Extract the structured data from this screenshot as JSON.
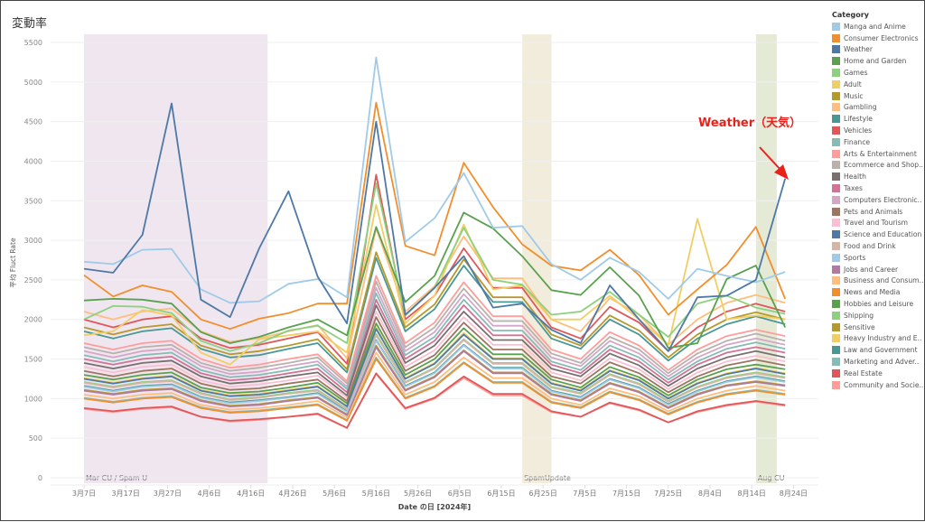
{
  "title": "変動率",
  "annotation": {
    "text": "Weather（天気）",
    "color": "#e8221b"
  },
  "chart_data": {
    "type": "line",
    "title": "変動率",
    "xlabel": "Date の日 [2024年]",
    "ylabel": "平均 Fluct Rate",
    "ylim": [
      0,
      5500
    ],
    "yticks": [
      "0",
      "500",
      "1000",
      "1500",
      "2000",
      "2500",
      "3000",
      "3500",
      "4000",
      "4500",
      "5000",
      "5500"
    ],
    "xtick_labels": [
      "3月7日",
      "3月17日",
      "3月27日",
      "4月6日",
      "4月16日",
      "4月26日",
      "5月6日",
      "5月16日",
      "5月26日",
      "6月5日",
      "6月15日",
      "6月25日",
      "7月5日",
      "7月15日",
      "7月25日",
      "8月4日",
      "8月14日",
      "8月24日"
    ],
    "grid": true,
    "legend_title": "Category",
    "legend_position": "right",
    "bands": [
      {
        "label": "Mar CU / Spam U",
        "start": "2024-03-07",
        "end": "2024-04-20",
        "color": "#efe6f0"
      },
      {
        "label": "SpamUpdate",
        "start": "2024-06-20",
        "end": "2024-06-27",
        "color": "#f2ecdc"
      },
      {
        "label": "Aug CU",
        "start": "2024-08-15",
        "end": "2024-08-20",
        "color": "#e5ead6"
      }
    ],
    "x": [
      "2024-03-07",
      "2024-03-14",
      "2024-03-21",
      "2024-03-28",
      "2024-04-04",
      "2024-04-11",
      "2024-04-18",
      "2024-04-25",
      "2024-05-02",
      "2024-05-09",
      "2024-05-16",
      "2024-05-23",
      "2024-05-30",
      "2024-06-06",
      "2024-06-13",
      "2024-06-20",
      "2024-06-27",
      "2024-07-04",
      "2024-07-11",
      "2024-07-18",
      "2024-07-25",
      "2024-08-01",
      "2024-08-08",
      "2024-08-15",
      "2024-08-22"
    ],
    "series": [
      {
        "name": "Manga and Anime",
        "legend": "Manga and Anime",
        "color": "#a0cbe8",
        "values": [
          2730,
          2700,
          2880,
          2890,
          2380,
          2210,
          2230,
          2450,
          2510,
          2280,
          5310,
          2980,
          3280,
          3850,
          3160,
          3180,
          2700,
          2500,
          2780,
          2600,
          2260,
          2640,
          2550,
          2470,
          2600
        ]
      },
      {
        "name": "Consumer Electronics",
        "legend": "Consumer Electronics",
        "color": "#f28e2b",
        "values": [
          2560,
          2290,
          2430,
          2350,
          2000,
          1880,
          2010,
          2080,
          2200,
          2200,
          4740,
          2930,
          2810,
          3980,
          3420,
          2950,
          2680,
          2620,
          2880,
          2560,
          2060,
          2380,
          2690,
          3170,
          2260
        ]
      },
      {
        "name": "Weather",
        "legend": "Weather",
        "color": "#4e79a7",
        "values": [
          2640,
          2590,
          3070,
          4730,
          2250,
          2030,
          2900,
          3620,
          2540,
          1950,
          4500,
          2060,
          2400,
          2800,
          2150,
          2200,
          1870,
          1700,
          2430,
          2000,
          1600,
          2280,
          2300,
          2500,
          3780
        ]
      },
      {
        "name": "Home and Garden",
        "legend": "Home and Garden",
        "color": "#59a14f",
        "values": [
          2240,
          2260,
          2250,
          2200,
          1840,
          1700,
          1780,
          1900,
          2000,
          1800,
          3170,
          2220,
          2550,
          3350,
          3150,
          2800,
          2370,
          2310,
          2660,
          2300,
          1640,
          1700,
          2510,
          2680,
          1900
        ]
      },
      {
        "name": "Games",
        "legend": "Games",
        "color": "#8cd17d",
        "values": [
          2000,
          2170,
          2160,
          2080,
          1730,
          1600,
          1700,
          1860,
          1920,
          1700,
          3720,
          2050,
          2400,
          3160,
          2500,
          2440,
          2060,
          2100,
          2350,
          2060,
          1780,
          2200,
          2300,
          2150,
          2070
        ]
      },
      {
        "name": "Adult",
        "legend": "Adult",
        "color": "#f1ce63",
        "values": [
          1800,
          1850,
          2120,
          2050,
          1580,
          1430,
          1750,
          1800,
          1850,
          1580,
          3450,
          1950,
          2300,
          3200,
          2380,
          2430,
          2000,
          2000,
          2300,
          2000,
          1680,
          3270,
          2000,
          2050,
          2000
        ]
      },
      {
        "name": "Music",
        "legend": "Music",
        "color": "#b6992d",
        "values": [
          1900,
          1810,
          1900,
          1940,
          1670,
          1560,
          1600,
          1670,
          1750,
          1370,
          2850,
          1900,
          2190,
          2760,
          2280,
          2280,
          1810,
          1670,
          2050,
          1860,
          1520,
          1810,
          2000,
          2090,
          2000
        ]
      },
      {
        "name": "Gambling",
        "legend": "Gambling",
        "color": "#ffbe7d",
        "values": [
          2100,
          2000,
          2100,
          2140,
          1850,
          1720,
          1760,
          1850,
          1930,
          1510,
          3150,
          2100,
          2420,
          3050,
          2520,
          2520,
          2000,
          1850,
          2270,
          2060,
          1680,
          2000,
          2210,
          2310,
          2210
        ]
      },
      {
        "name": "Lifestyle",
        "legend": "Lifestyle",
        "color": "#499894",
        "values": [
          1850,
          1760,
          1850,
          1890,
          1630,
          1520,
          1550,
          1630,
          1700,
          1330,
          2780,
          1850,
          2130,
          2680,
          2220,
          2220,
          1760,
          1630,
          2000,
          1810,
          1480,
          1760,
          1940,
          2040,
          1940
        ]
      },
      {
        "name": "Vehicles",
        "legend": "Vehicles",
        "color": "#e15759",
        "values": [
          2000,
          1900,
          2000,
          2040,
          1760,
          1640,
          1680,
          1760,
          1840,
          1440,
          3830,
          2000,
          2300,
          2900,
          2400,
          2400,
          1900,
          1760,
          2160,
          1960,
          1600,
          1900,
          2100,
          2200,
          2100
        ]
      },
      {
        "name": "Finance",
        "legend": "Finance",
        "color": "#86bcb6",
        "values": [
          1550,
          1470,
          1550,
          1580,
          1360,
          1270,
          1300,
          1360,
          1430,
          1120,
          2330,
          1550,
          1780,
          2250,
          1860,
          1860,
          1470,
          1360,
          1670,
          1520,
          1240,
          1470,
          1630,
          1710,
          1630
        ]
      },
      {
        "name": "Arts & Entertainment",
        "legend": "Arts & Entertainment",
        "color": "#ff9d9a",
        "values": [
          1700,
          1620,
          1700,
          1730,
          1500,
          1390,
          1430,
          1500,
          1560,
          1220,
          2550,
          1700,
          1960,
          2470,
          2040,
          2040,
          1620,
          1500,
          1840,
          1670,
          1360,
          1620,
          1790,
          1870,
          1790
        ]
      },
      {
        "name": "Ecommerce and Shopping",
        "legend": "Ecommerce and Shop..",
        "color": "#bab0ac",
        "values": [
          1650,
          1570,
          1650,
          1680,
          1450,
          1350,
          1390,
          1450,
          1520,
          1190,
          2480,
          1650,
          1900,
          2390,
          1980,
          1980,
          1570,
          1450,
          1780,
          1620,
          1320,
          1570,
          1730,
          1820,
          1730
        ]
      },
      {
        "name": "Health",
        "legend": "Health",
        "color": "#79706e",
        "values": [
          1450,
          1380,
          1450,
          1480,
          1280,
          1190,
          1220,
          1280,
          1330,
          1040,
          2180,
          1450,
          1670,
          2100,
          1740,
          1740,
          1380,
          1280,
          1570,
          1420,
          1160,
          1380,
          1520,
          1600,
          1520
        ]
      },
      {
        "name": "Taxes",
        "legend": "Taxes",
        "color": "#d37295",
        "values": [
          1500,
          1430,
          1500,
          1530,
          1320,
          1230,
          1260,
          1320,
          1380,
          1080,
          2250,
          1500,
          1730,
          2180,
          1800,
          1800,
          1430,
          1320,
          1620,
          1470,
          1200,
          1430,
          1580,
          1650,
          1580
        ]
      },
      {
        "name": "Computers Electronics",
        "legend": "Computers Electronic..",
        "color": "#d4a6c8",
        "values": [
          1600,
          1520,
          1600,
          1630,
          1410,
          1310,
          1340,
          1410,
          1470,
          1150,
          2400,
          1600,
          1840,
          2320,
          1920,
          1920,
          1520,
          1410,
          1730,
          1570,
          1280,
          1520,
          1680,
          1760,
          1680
        ]
      },
      {
        "name": "Pets and Animals",
        "legend": "Pets and Animals",
        "color": "#9d7660",
        "values": [
          1350,
          1280,
          1350,
          1380,
          1190,
          1110,
          1130,
          1190,
          1240,
          970,
          2030,
          1350,
          1550,
          1960,
          1620,
          1620,
          1280,
          1190,
          1460,
          1320,
          1080,
          1280,
          1420,
          1490,
          1420
        ]
      },
      {
        "name": "Travel and Tourism",
        "legend": "Travel and Tourism",
        "color": "#fabfd2",
        "values": [
          1400,
          1330,
          1400,
          1430,
          1230,
          1150,
          1180,
          1230,
          1290,
          1010,
          2100,
          1400,
          1610,
          2030,
          1680,
          1680,
          1330,
          1230,
          1510,
          1370,
          1120,
          1330,
          1470,
          1540,
          1470
        ]
      },
      {
        "name": "Science and Education",
        "legend": "Science and Education",
        "color": "#4e79a7",
        "values": [
          1250,
          1190,
          1250,
          1280,
          1100,
          1030,
          1050,
          1100,
          1150,
          900,
          1880,
          1250,
          1440,
          1810,
          1500,
          1500,
          1190,
          1100,
          1350,
          1230,
          1000,
          1190,
          1310,
          1380,
          1310
        ]
      },
      {
        "name": "Food and Drink",
        "legend": "Food and Drink",
        "color": "#d7b5a6",
        "values": [
          1200,
          1140,
          1200,
          1220,
          1060,
          980,
          1010,
          1060,
          1100,
          860,
          1800,
          1200,
          1380,
          1740,
          1440,
          1440,
          1140,
          1060,
          1300,
          1180,
          960,
          1140,
          1260,
          1320,
          1260
        ]
      },
      {
        "name": "Sports",
        "legend": "Sports",
        "color": "#a0cbe8",
        "values": [
          1150,
          1090,
          1150,
          1170,
          1010,
          940,
          970,
          1010,
          1060,
          830,
          1730,
          1150,
          1320,
          1670,
          1380,
          1380,
          1090,
          1010,
          1240,
          1130,
          920,
          1090,
          1210,
          1270,
          1210
        ]
      },
      {
        "name": "Jobs and Career",
        "legend": "Jobs and Career",
        "color": "#b07aa1",
        "values": [
          1100,
          1050,
          1100,
          1120,
          970,
          900,
          920,
          970,
          1010,
          790,
          1650,
          1100,
          1270,
          1600,
          1320,
          1320,
          1050,
          970,
          1190,
          1080,
          880,
          1050,
          1160,
          1210,
          1160
        ]
      },
      {
        "name": "Business and Consumer",
        "legend": "Business and Consum..",
        "color": "#ffbe7d",
        "values": [
          1050,
          1000,
          1050,
          1070,
          920,
          860,
          880,
          920,
          970,
          760,
          1580,
          1050,
          1210,
          1520,
          1260,
          1260,
          1000,
          920,
          1130,
          1030,
          840,
          1000,
          1100,
          1160,
          1100
        ]
      },
      {
        "name": "News and Media",
        "legend": "News and Media",
        "color": "#f28e2b",
        "values": [
          1000,
          950,
          1000,
          1020,
          880,
          820,
          840,
          880,
          920,
          720,
          1500,
          1000,
          1150,
          1450,
          1200,
          1200,
          950,
          880,
          1080,
          980,
          800,
          950,
          1050,
          1100,
          1050
        ]
      },
      {
        "name": "Hobbies and Leisure",
        "legend": "Hobbies and Leisure",
        "color": "#59a14f",
        "values": [
          1300,
          1240,
          1300,
          1330,
          1140,
          1070,
          1090,
          1140,
          1200,
          940,
          1950,
          1300,
          1500,
          1890,
          1560,
          1560,
          1240,
          1140,
          1400,
          1270,
          1040,
          1240,
          1370,
          1430,
          1370
        ]
      },
      {
        "name": "Shipping",
        "legend": "Shipping",
        "color": "#8cd17d",
        "values": [
          1210,
          1150,
          1210,
          1230,
          1070,
          990,
          1020,
          1070,
          1110,
          870,
          1820,
          1210,
          1390,
          1750,
          1450,
          1450,
          1150,
          1070,
          1310,
          1190,
          970,
          1150,
          1270,
          1330,
          1270
        ]
      },
      {
        "name": "Sensitive",
        "legend": "Sensitive",
        "color": "#b6992d",
        "values": [
          1110,
          1060,
          1110,
          1130,
          980,
          910,
          930,
          980,
          1020,
          800,
          1670,
          1110,
          1280,
          1610,
          1330,
          1330,
          1060,
          980,
          1200,
          1090,
          890,
          1060,
          1170,
          1220,
          1170
        ]
      },
      {
        "name": "Heavy Industry and Engineering",
        "legend": "Heavy Industry and E..",
        "color": "#f1ce63",
        "values": [
          1260,
          1200,
          1260,
          1290,
          1110,
          1040,
          1060,
          1110,
          1160,
          910,
          1900,
          1260,
          1450,
          1830,
          1510,
          1510,
          1200,
          1110,
          1360,
          1240,
          1010,
          1200,
          1320,
          1390,
          1320
        ]
      },
      {
        "name": "Law and Government",
        "legend": "Law and Government",
        "color": "#499894",
        "values": [
          1160,
          1100,
          1160,
          1180,
          1020,
          950,
          980,
          1020,
          1070,
          840,
          1740,
          1160,
          1330,
          1680,
          1390,
          1390,
          1100,
          1020,
          1250,
          1140,
          930,
          1100,
          1220,
          1280,
          1220
        ]
      },
      {
        "name": "Marketing and Advertising",
        "legend": "Marketing and Adver..",
        "color": "#86bcb6",
        "values": [
          1010,
          960,
          1010,
          1030,
          890,
          830,
          850,
          890,
          930,
          730,
          1520,
          1010,
          1160,
          1460,
          1210,
          1210,
          960,
          890,
          1090,
          990,
          810,
          960,
          1060,
          1110,
          1060
        ]
      },
      {
        "name": "Real Estate",
        "legend": "Real Estate",
        "color": "#e15759",
        "values": [
          880,
          840,
          880,
          900,
          770,
          720,
          740,
          770,
          810,
          630,
          1320,
          880,
          1010,
          1280,
          1060,
          1060,
          840,
          770,
          950,
          860,
          700,
          840,
          920,
          970,
          920
        ]
      },
      {
        "name": "Community and Society",
        "legend": "Community and Socie..",
        "color": "#ff9d9a",
        "values": [
          870,
          830,
          870,
          890,
          770,
          710,
          730,
          770,
          800,
          630,
          1310,
          870,
          1000,
          1260,
          1040,
          1040,
          830,
          770,
          940,
          850,
          700,
          830,
          910,
          960,
          910
        ]
      }
    ]
  }
}
